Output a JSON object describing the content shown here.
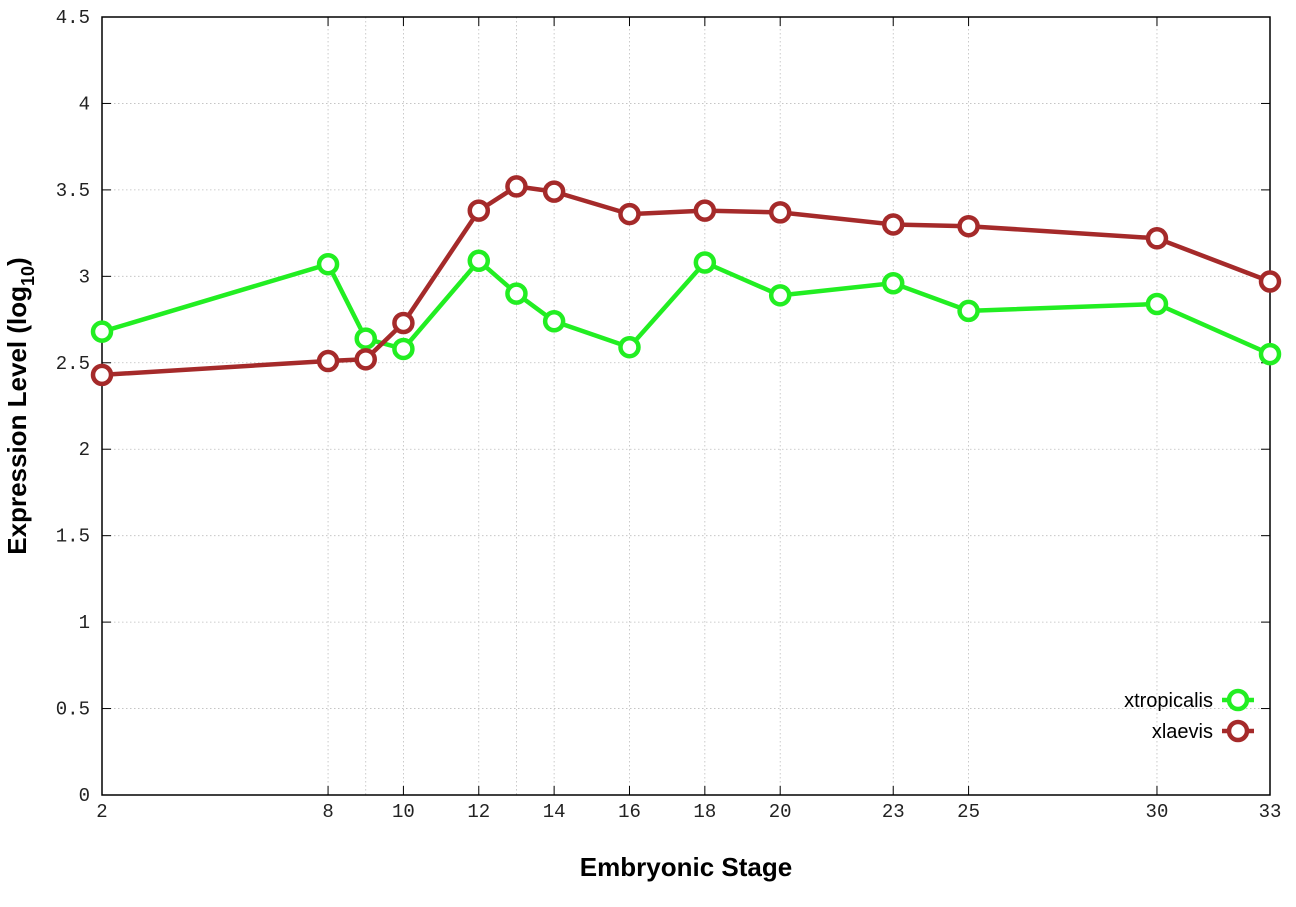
{
  "chart_data": {
    "type": "line",
    "xlabel": "Embryonic Stage",
    "ylabel_main": "Expression Level (log",
    "ylabel_sub": "10",
    "ylabel_close": ")",
    "ylim": [
      0,
      4.5
    ],
    "yticks": [
      0,
      0.5,
      1,
      1.5,
      2,
      2.5,
      3,
      3.5,
      4,
      4.5
    ],
    "ytick_labels": [
      "0",
      "0.5",
      "1",
      "1.5",
      "2",
      "2.5",
      "3",
      "3.5",
      "4",
      "4.5"
    ],
    "xlim": [
      2,
      33
    ],
    "xticks": [
      2,
      8,
      10,
      12,
      14,
      16,
      18,
      20,
      23,
      25,
      30,
      33
    ],
    "xtick_labels": [
      "2",
      "8",
      "10",
      "12",
      "14",
      "16",
      "18",
      "20",
      "23",
      "25",
      "30",
      "33"
    ],
    "x_vgrid_extra": [
      9,
      13
    ],
    "grid": true,
    "legend_position": "bottom-right",
    "series": [
      {
        "name": "xtropicalis",
        "color": "#22ee22",
        "x": [
          2,
          8,
          9,
          10,
          12,
          13,
          14,
          16,
          18,
          20,
          23,
          25,
          30,
          33
        ],
        "values": [
          2.68,
          3.07,
          2.64,
          2.58,
          3.09,
          2.9,
          2.74,
          2.59,
          3.08,
          2.89,
          2.96,
          2.8,
          2.84,
          2.55
        ]
      },
      {
        "name": "xlaevis",
        "color": "#a52a2a",
        "x": [
          2,
          8,
          9,
          10,
          12,
          13,
          14,
          16,
          18,
          20,
          23,
          25,
          30,
          33
        ],
        "values": [
          2.43,
          2.51,
          2.52,
          2.73,
          3.38,
          3.52,
          3.49,
          3.36,
          3.38,
          3.37,
          3.3,
          3.29,
          3.22,
          2.97
        ]
      }
    ]
  }
}
